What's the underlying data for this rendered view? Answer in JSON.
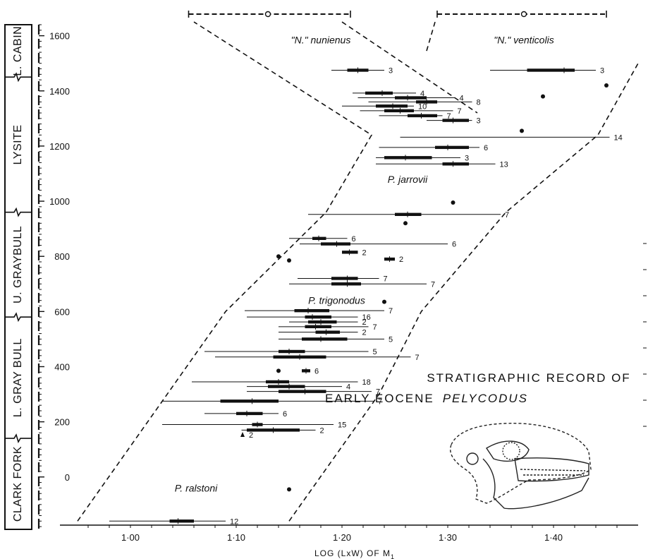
{
  "chart_data": {
    "type": "scatter",
    "title_lines": [
      "STRATIGRAPHIC RECORD OF",
      "EARLY EOCENE"
    ],
    "title_italic": "PELYCODUS",
    "xlabel": "LOG (LxW)   OF   M",
    "xlabel_sub": "1",
    "ylabel": "",
    "xlim": [
      0.95,
      1.48
    ],
    "ylim": [
      -190,
      1640
    ],
    "x_ticks": [
      {
        "value": 1.0,
        "label": "1·00"
      },
      {
        "value": 1.1,
        "label": "1·10"
      },
      {
        "value": 1.2,
        "label": "1·20"
      },
      {
        "value": 1.3,
        "label": "1·30"
      },
      {
        "value": 1.4,
        "label": "1·40"
      }
    ],
    "y_ticks": [
      {
        "value": 0,
        "label": "0"
      },
      {
        "value": 200,
        "label": "200"
      },
      {
        "value": 400,
        "label": "400"
      },
      {
        "value": 600,
        "label": "600"
      },
      {
        "value": 800,
        "label": "800"
      },
      {
        "value": 1000,
        "label": "1000"
      },
      {
        "value": 1200,
        "label": "1200"
      },
      {
        "value": 1400,
        "label": "1400"
      },
      {
        "value": 1600,
        "label": "1600"
      }
    ],
    "zones": [
      {
        "label": "L. CABIN",
        "from": 1450,
        "to": 1640
      },
      {
        "label": "LYSITE",
        "from": 960,
        "to": 1450
      },
      {
        "label": "U. GRAYBULL",
        "from": 580,
        "to": 960
      },
      {
        "label": "L. GRAY BULL",
        "from": 140,
        "to": 580
      },
      {
        "label": "CLARK FORK",
        "from": -190,
        "to": 140
      }
    ],
    "series": [
      {
        "name": "P. ralstoni",
        "label_x": 1.062,
        "label_y": -40
      },
      {
        "name": "P. trigonodus",
        "label_x": 1.195,
        "label_y": 640
      },
      {
        "name": "P. jarrovii",
        "label_x": 1.262,
        "label_y": 1080
      },
      {
        "name": "\"N.\" nunienus",
        "label_x": 1.18,
        "label_y": 1585
      },
      {
        "name": "\"N.\" venticolis",
        "label_x": 1.372,
        "label_y": 1585
      }
    ],
    "samples": [
      {
        "y": 1475,
        "min": 1.19,
        "max": 1.24,
        "low": 1.205,
        "high": 1.225,
        "mean": 1.215,
        "n": "3"
      },
      {
        "y": 1475,
        "min": 1.34,
        "max": 1.44,
        "low": 1.375,
        "high": 1.42,
        "mean": 1.41,
        "n": "3"
      },
      {
        "y": 1392,
        "min": 1.21,
        "max": 1.27,
        "low": 1.222,
        "high": 1.248,
        "mean": 1.238,
        "n": "4"
      },
      {
        "y": 1375,
        "min": 1.215,
        "max": 1.307,
        "low": 1.25,
        "high": 1.28,
        "mean": 1.262,
        "n": "4"
      },
      {
        "y": 1360,
        "min": 1.225,
        "max": 1.323,
        "low": 1.27,
        "high": 1.29,
        "mean": 1.28,
        "n": "8"
      },
      {
        "y": 1345,
        "min": 1.2,
        "max": 1.268,
        "low": 1.232,
        "high": 1.262,
        "mean": 1.248,
        "n": "10"
      },
      {
        "y": 1328,
        "min": 1.217,
        "max": 1.305,
        "low": 1.24,
        "high": 1.268,
        "mean": 1.255,
        "n": "7"
      },
      {
        "y": 1310,
        "min": 1.235,
        "max": 1.295,
        "low": 1.262,
        "high": 1.29,
        "mean": 1.275,
        "n": "7"
      },
      {
        "y": 1293,
        "min": 1.28,
        "max": 1.323,
        "low": 1.295,
        "high": 1.32,
        "mean": 1.305,
        "n": "3"
      },
      {
        "y": 1232,
        "min": 1.255,
        "max": 1.453,
        "low": null,
        "high": null,
        "mean": null,
        "n": "14"
      },
      {
        "y": 1195,
        "min": 1.235,
        "max": 1.33,
        "low": 1.288,
        "high": 1.32,
        "mean": 1.3,
        "n": "6"
      },
      {
        "y": 1158,
        "min": 1.232,
        "max": 1.312,
        "low": 1.24,
        "high": 1.285,
        "mean": 1.26,
        "n": "3"
      },
      {
        "y": 1135,
        "min": 1.232,
        "max": 1.345,
        "low": 1.295,
        "high": 1.32,
        "mean": 1.305,
        "n": "13"
      },
      {
        "y": 952,
        "min": 1.168,
        "max": 1.35,
        "low": 1.25,
        "high": 1.275,
        "mean": 1.262,
        "n": "7"
      },
      {
        "y": 865,
        "min": 1.15,
        "max": 1.205,
        "low": 1.172,
        "high": 1.185,
        "mean": 1.178,
        "n": "6"
      },
      {
        "y": 845,
        "min": 1.16,
        "max": 1.3,
        "low": 1.18,
        "high": 1.208,
        "mean": 1.195,
        "n": "6"
      },
      {
        "y": 815,
        "min": null,
        "max": null,
        "low": 1.2,
        "high": 1.215,
        "mean": 1.207,
        "n": "2"
      },
      {
        "y": 790,
        "min": null,
        "max": null,
        "low": 1.24,
        "high": 1.25,
        "mean": 1.245,
        "n": "2"
      },
      {
        "y": 720,
        "min": 1.158,
        "max": 1.235,
        "low": 1.19,
        "high": 1.215,
        "mean": 1.205,
        "n": "7"
      },
      {
        "y": 700,
        "min": 1.15,
        "max": 1.28,
        "low": 1.19,
        "high": 1.218,
        "mean": 1.205,
        "n": "7"
      },
      {
        "y": 603,
        "min": 1.108,
        "max": 1.24,
        "low": 1.155,
        "high": 1.188,
        "mean": 1.168,
        "n": "7"
      },
      {
        "y": 580,
        "min": 1.11,
        "max": 1.215,
        "low": 1.165,
        "high": 1.19,
        "mean": 1.172,
        "n": "16"
      },
      {
        "y": 562,
        "min": 1.15,
        "max": 1.215,
        "low": 1.168,
        "high": 1.195,
        "mean": 1.18,
        "n": "2"
      },
      {
        "y": 545,
        "min": 1.14,
        "max": 1.225,
        "low": 1.165,
        "high": 1.19,
        "mean": 1.175,
        "n": "7"
      },
      {
        "y": 525,
        "min": 1.14,
        "max": 1.215,
        "low": 1.175,
        "high": 1.198,
        "mean": 1.185,
        "n": "2"
      },
      {
        "y": 500,
        "min": 1.14,
        "max": 1.24,
        "low": 1.162,
        "high": 1.205,
        "mean": 1.18,
        "n": "5"
      },
      {
        "y": 455,
        "min": 1.07,
        "max": 1.225,
        "low": 1.14,
        "high": 1.165,
        "mean": 1.15,
        "n": "5"
      },
      {
        "y": 435,
        "min": 1.08,
        "max": 1.265,
        "low": 1.135,
        "high": 1.185,
        "mean": 1.16,
        "n": "7"
      },
      {
        "y": 385,
        "min": null,
        "max": null,
        "low": 1.162,
        "high": 1.17,
        "mean": 1.166,
        "n": "6"
      },
      {
        "y": 345,
        "min": 1.058,
        "max": 1.215,
        "low": 1.128,
        "high": 1.15,
        "mean": 1.14,
        "n": "18"
      },
      {
        "y": 328,
        "min": 1.11,
        "max": 1.2,
        "low": 1.13,
        "high": 1.165,
        "mean": 1.15,
        "n": "4"
      },
      {
        "y": 310,
        "min": 1.11,
        "max": 1.228,
        "low": 1.14,
        "high": 1.185,
        "mean": 1.165,
        "n": "7"
      },
      {
        "y": 275,
        "min": 1.03,
        "max": 1.23,
        "low": 1.085,
        "high": 1.14,
        "mean": 1.115,
        "n": "7"
      },
      {
        "y": 230,
        "min": 1.07,
        "max": 1.14,
        "low": 1.1,
        "high": 1.125,
        "mean": 1.11,
        "n": "6"
      },
      {
        "y": 190,
        "min": 1.03,
        "max": 1.192,
        "low": 1.115,
        "high": 1.125,
        "mean": 1.12,
        "n": "15"
      },
      {
        "y": 170,
        "min": 1.105,
        "max": 1.175,
        "low": 1.11,
        "high": 1.16,
        "mean": 1.135,
        "n": "2"
      },
      {
        "y": 153,
        "min": null,
        "max": null,
        "low": null,
        "high": null,
        "mean": 1.106,
        "n": "2"
      },
      {
        "y": -160,
        "min": 0.98,
        "max": 1.09,
        "low": 1.037,
        "high": 1.06,
        "mean": 1.045,
        "n": "12"
      }
    ],
    "single_specimens": [
      {
        "x": 1.45,
        "y": 1420
      },
      {
        "x": 1.39,
        "y": 1380
      },
      {
        "x": 1.37,
        "y": 1255
      },
      {
        "x": 1.305,
        "y": 995
      },
      {
        "x": 1.26,
        "y": 920
      },
      {
        "x": 1.14,
        "y": 800
      },
      {
        "x": 1.15,
        "y": 785
      },
      {
        "x": 1.24,
        "y": 635
      },
      {
        "x": 1.14,
        "y": 385
      },
      {
        "x": 1.15,
        "y": -45
      }
    ],
    "boundary_polygons": [
      {
        "points": [
          [
            0.95,
            -160
          ],
          [
            1.09,
            600
          ],
          [
            1.185,
            960
          ],
          [
            1.228,
            1240
          ],
          [
            1.06,
            1650
          ]
        ]
      },
      {
        "points": [
          [
            1.15,
            -160
          ],
          [
            1.235,
            300
          ],
          [
            1.275,
            600
          ],
          [
            1.355,
            960
          ],
          [
            1.442,
            1240
          ],
          [
            1.48,
            1500
          ]
        ]
      },
      {
        "points": [
          [
            1.2,
            1650
          ],
          [
            1.328,
            1320
          ]
        ]
      },
      {
        "points": [
          [
            1.28,
            1545
          ],
          [
            1.288,
            1650
          ]
        ]
      }
    ],
    "top_ranges": [
      {
        "min": 1.055,
        "max": 1.208,
        "mean": 1.13
      },
      {
        "min": 1.29,
        "max": 1.45,
        "mean": 1.372
      }
    ],
    "grid": false,
    "legend": "none"
  }
}
